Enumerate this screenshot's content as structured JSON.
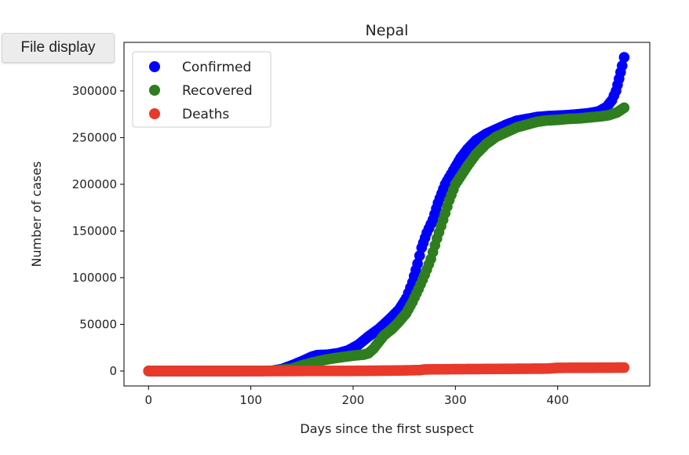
{
  "ui": {
    "file_display_label": "File display"
  },
  "chart_data": {
    "type": "scatter",
    "title": "Nepal",
    "xlabel": "Days since the first suspect",
    "ylabel": "Number of cases",
    "xlim": [
      -24,
      490
    ],
    "ylim": [
      -16000,
      352000
    ],
    "xticks": [
      0,
      100,
      200,
      300,
      400
    ],
    "yticks": [
      0,
      50000,
      100000,
      150000,
      200000,
      250000,
      300000
    ],
    "grid": false,
    "legend": "upper-left",
    "series": [
      {
        "name": "Confirmed",
        "color": "#0000ff",
        "points": [
          [
            0,
            0
          ],
          [
            60,
            0
          ],
          [
            100,
            1
          ],
          [
            120,
            100
          ],
          [
            130,
            2000
          ],
          [
            140,
            6000
          ],
          [
            150,
            10500
          ],
          [
            160,
            15500
          ],
          [
            165,
            17000
          ],
          [
            175,
            17500
          ],
          [
            185,
            19000
          ],
          [
            195,
            22000
          ],
          [
            205,
            28000
          ],
          [
            215,
            37000
          ],
          [
            225,
            45000
          ],
          [
            235,
            55000
          ],
          [
            245,
            66000
          ],
          [
            252,
            78000
          ],
          [
            258,
            95000
          ],
          [
            263,
            115000
          ],
          [
            267,
            132000
          ],
          [
            272,
            148000
          ],
          [
            278,
            162000
          ],
          [
            283,
            180000
          ],
          [
            290,
            200000
          ],
          [
            298,
            215000
          ],
          [
            305,
            228000
          ],
          [
            312,
            238000
          ],
          [
            320,
            247000
          ],
          [
            330,
            254000
          ],
          [
            340,
            259000
          ],
          [
            350,
            264000
          ],
          [
            360,
            268000
          ],
          [
            370,
            270000
          ],
          [
            380,
            272000
          ],
          [
            390,
            273000
          ],
          [
            400,
            273500
          ],
          [
            410,
            274000
          ],
          [
            420,
            275000
          ],
          [
            430,
            276000
          ],
          [
            440,
            278000
          ],
          [
            448,
            283000
          ],
          [
            453,
            290000
          ],
          [
            457,
            300000
          ],
          [
            460,
            313000
          ],
          [
            463,
            327000
          ],
          [
            465,
            336000
          ]
        ]
      },
      {
        "name": "Recovered",
        "color": "#2e7d1f",
        "points": [
          [
            0,
            0
          ],
          [
            80,
            0
          ],
          [
            120,
            200
          ],
          [
            140,
            2500
          ],
          [
            150,
            6000
          ],
          [
            160,
            9000
          ],
          [
            170,
            11500
          ],
          [
            180,
            13500
          ],
          [
            190,
            15000
          ],
          [
            200,
            16500
          ],
          [
            210,
            17500
          ],
          [
            215,
            19000
          ],
          [
            220,
            24000
          ],
          [
            225,
            31000
          ],
          [
            230,
            38000
          ],
          [
            238,
            45000
          ],
          [
            245,
            53000
          ],
          [
            252,
            62000
          ],
          [
            258,
            74000
          ],
          [
            264,
            88000
          ],
          [
            270,
            103000
          ],
          [
            276,
            120000
          ],
          [
            282,
            142000
          ],
          [
            288,
            162000
          ],
          [
            294,
            183000
          ],
          [
            300,
            200000
          ],
          [
            306,
            210000
          ],
          [
            312,
            220000
          ],
          [
            320,
            232000
          ],
          [
            330,
            243000
          ],
          [
            340,
            251000
          ],
          [
            350,
            256000
          ],
          [
            360,
            261000
          ],
          [
            370,
            264000
          ],
          [
            380,
            267000
          ],
          [
            390,
            268500
          ],
          [
            400,
            269000
          ],
          [
            410,
            270000
          ],
          [
            420,
            270500
          ],
          [
            430,
            271500
          ],
          [
            440,
            272500
          ],
          [
            450,
            274000
          ],
          [
            458,
            277000
          ],
          [
            465,
            282000
          ]
        ]
      },
      {
        "name": "Deaths",
        "color": "#e8392b",
        "points": [
          [
            0,
            0
          ],
          [
            100,
            0
          ],
          [
            160,
            80
          ],
          [
            200,
            150
          ],
          [
            240,
            500
          ],
          [
            265,
            1000
          ],
          [
            270,
            1700
          ],
          [
            300,
            2000
          ],
          [
            330,
            2200
          ],
          [
            360,
            2400
          ],
          [
            390,
            2600
          ],
          [
            395,
            3000
          ],
          [
            400,
            3400
          ],
          [
            430,
            3500
          ],
          [
            450,
            3600
          ],
          [
            465,
            3700
          ]
        ]
      }
    ]
  }
}
